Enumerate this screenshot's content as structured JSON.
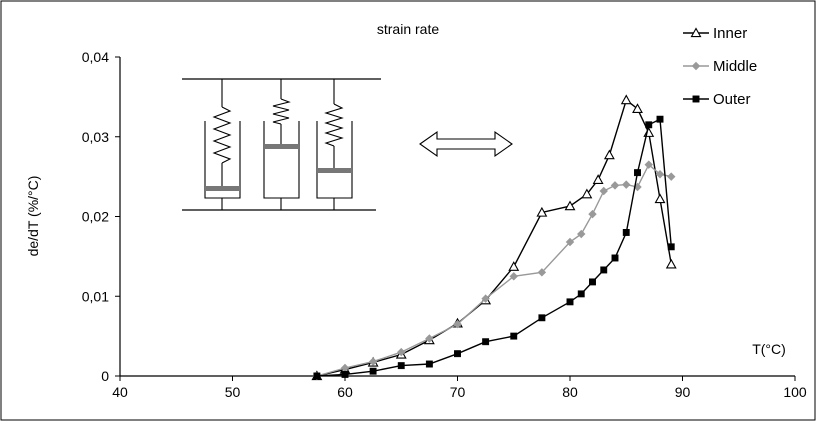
{
  "chart_data": {
    "type": "line",
    "title": "strain rate",
    "xlabel": "T(°C)",
    "ylabel": "de/dT (%/°C)",
    "xlim": [
      40,
      100
    ],
    "ylim": [
      0,
      0.04
    ],
    "x_ticks": [
      "40",
      "50",
      "60",
      "70",
      "80",
      "90",
      "100"
    ],
    "y_ticks": [
      "0",
      "0,01",
      "0,02",
      "0,03",
      "0,04"
    ],
    "grid": false,
    "legend_position": "top-right",
    "series": [
      {
        "name": "Inner",
        "color": "#000000",
        "marker": "open-triangle",
        "x": [
          57.5,
          60,
          62.5,
          65,
          67.5,
          70,
          72.5,
          75,
          77.5,
          80,
          81.5,
          82.5,
          83.5,
          85,
          86,
          87,
          88,
          89
        ],
        "y": [
          0,
          0.0008,
          0.0017,
          0.0027,
          0.0045,
          0.0066,
          0.0095,
          0.0137,
          0.0205,
          0.0213,
          0.0228,
          0.0246,
          0.0277,
          0.0346,
          0.0335,
          0.0305,
          0.0222,
          0.014
        ]
      },
      {
        "name": "Middle",
        "color": "#999999",
        "marker": "diamond",
        "x": [
          57.5,
          60,
          62.5,
          65,
          67.5,
          70,
          72.5,
          75,
          77.5,
          80,
          81,
          82,
          83,
          84,
          85,
          86,
          87,
          88,
          89
        ],
        "y": [
          0,
          0.001,
          0.0018,
          0.003,
          0.0047,
          0.0065,
          0.0097,
          0.0125,
          0.013,
          0.0168,
          0.0178,
          0.0203,
          0.0232,
          0.0239,
          0.024,
          0.0237,
          0.0265,
          0.0253,
          0.025
        ]
      },
      {
        "name": "Outer",
        "color": "#000000",
        "marker": "filled-square",
        "x": [
          57.5,
          60,
          62.5,
          65,
          67.5,
          70,
          72.5,
          75,
          77.5,
          80,
          81,
          82,
          83,
          84,
          85,
          86,
          87,
          88,
          89
        ],
        "y": [
          0,
          0.0002,
          0.0006,
          0.0013,
          0.0015,
          0.0028,
          0.0043,
          0.005,
          0.0073,
          0.0093,
          0.0103,
          0.0118,
          0.0133,
          0.0148,
          0.018,
          0.0255,
          0.0315,
          0.0322,
          0.0162
        ]
      }
    ]
  }
}
